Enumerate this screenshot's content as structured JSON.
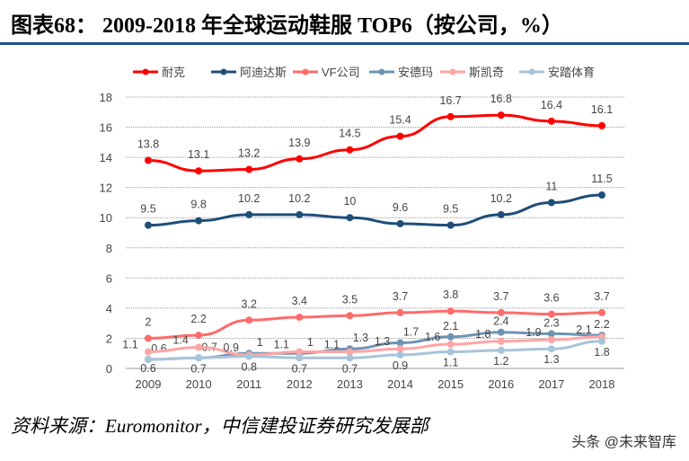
{
  "title": "图表68： 2009-2018 年全球运动鞋服 TOP6（按公司，%）",
  "source": "资料来源：Euromonitor，中信建投证券研究发展部",
  "watermark": "头条 @未来智库",
  "chart_data": {
    "type": "line",
    "categories": [
      "2009",
      "2010",
      "2011",
      "2012",
      "2013",
      "2014",
      "2015",
      "2016",
      "2017",
      "2018"
    ],
    "ylim": [
      0,
      18
    ],
    "yticks": [
      0,
      2,
      4,
      6,
      8,
      10,
      12,
      14,
      16,
      18
    ],
    "grid": "horizontal-dotted",
    "legend": "top",
    "series": [
      {
        "name": "耐克",
        "color": "#ff0000",
        "values": [
          13.8,
          13.1,
          13.2,
          13.9,
          14.5,
          15.4,
          16.7,
          16.8,
          16.4,
          16.1
        ],
        "labels": [
          "13.8",
          "13.1",
          "13.2",
          "13.9",
          "14.5",
          "15.4",
          "16.7",
          "16.8",
          "16.4",
          "16.1"
        ]
      },
      {
        "name": "阿迪达斯",
        "color": "#1f4e79",
        "values": [
          9.5,
          9.8,
          10.2,
          10.2,
          10,
          9.6,
          9.5,
          10.2,
          11,
          11.5
        ],
        "labels": [
          "9.5",
          "9.8",
          "10.2",
          "10.2",
          "10",
          "9.6",
          "9.5",
          "10.2",
          "11",
          "11.5"
        ]
      },
      {
        "name": "VF公司",
        "color": "#ff6b6b",
        "values": [
          2,
          2.2,
          3.2,
          3.4,
          3.5,
          3.7,
          3.8,
          3.7,
          3.6,
          3.7
        ],
        "labels": [
          "2",
          "2.2",
          "3.2",
          "3.4",
          "3.5",
          "3.7",
          "3.8",
          "3.7",
          "3.6",
          "3.7"
        ]
      },
      {
        "name": "安德玛",
        "color": "#6f93b3",
        "values": [
          0.6,
          0.7,
          1,
          1,
          1.3,
          1.7,
          2.1,
          2.4,
          2.3,
          2.2
        ],
        "labels": [
          "0.6",
          "0.7",
          "1",
          "1",
          "1.3",
          "1.7",
          "2.1",
          "2.4",
          "2.3",
          "2.2"
        ]
      },
      {
        "name": "斯凯奇",
        "color": "#ffa5a5",
        "values": [
          1.1,
          1.4,
          0.9,
          1.1,
          1.1,
          1.3,
          1.6,
          1.8,
          1.9,
          2.1
        ],
        "labels": [
          "1.1",
          "1.4",
          "0.9",
          "1.1",
          "1.1",
          "1.3",
          "1.6",
          "1.8",
          "1.9",
          "2.1"
        ]
      },
      {
        "name": "安踏体育",
        "color": "#a9c4d8",
        "values": [
          0.6,
          0.7,
          0.8,
          0.7,
          0.7,
          0.9,
          1.1,
          1.2,
          1.3,
          1.8
        ],
        "labels": [
          "0.6",
          "0.7",
          "0.8",
          "0.7",
          "0.7",
          "0.9",
          "1.1",
          "1.2",
          "1.3",
          "1.8"
        ]
      }
    ]
  }
}
